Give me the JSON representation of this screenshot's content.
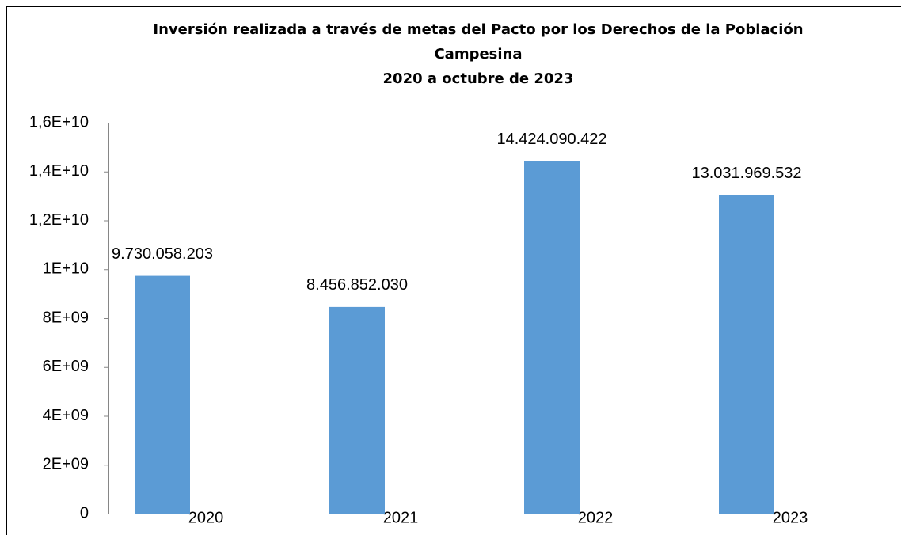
{
  "chart_data": {
    "type": "bar",
    "title": "Inversión realizada a través de metas del Pacto por los Derechos de la Población Campesina",
    "subtitle": "2020 a octubre de 2023",
    "categories": [
      "2020",
      "2021",
      "2022",
      "2023"
    ],
    "values": [
      9730058203,
      8456852030,
      14424090422,
      13031969532
    ],
    "value_labels": [
      "9.730.058.203",
      "8.456.852.030",
      "14.424.090.422",
      "13.031.969.532"
    ],
    "color": "#5b9bd5",
    "ylim": [
      0,
      16000000000
    ],
    "yticks": [
      0,
      {
        "value": 2000000000,
        "label": "2E+09"
      },
      {
        "value": 4000000000,
        "label": "4E+09"
      },
      {
        "value": 6000000000,
        "label": "6E+09"
      },
      {
        "value": 8000000000,
        "label": "8E+09"
      },
      {
        "value": 10000000000,
        "label": "1E+10"
      },
      {
        "value": 12000000000,
        "label": "1,2E+10"
      },
      {
        "value": 14000000000,
        "label": "1,4E+10"
      },
      {
        "value": 16000000000,
        "label": "1,6E+10"
      }
    ],
    "grid": false
  }
}
